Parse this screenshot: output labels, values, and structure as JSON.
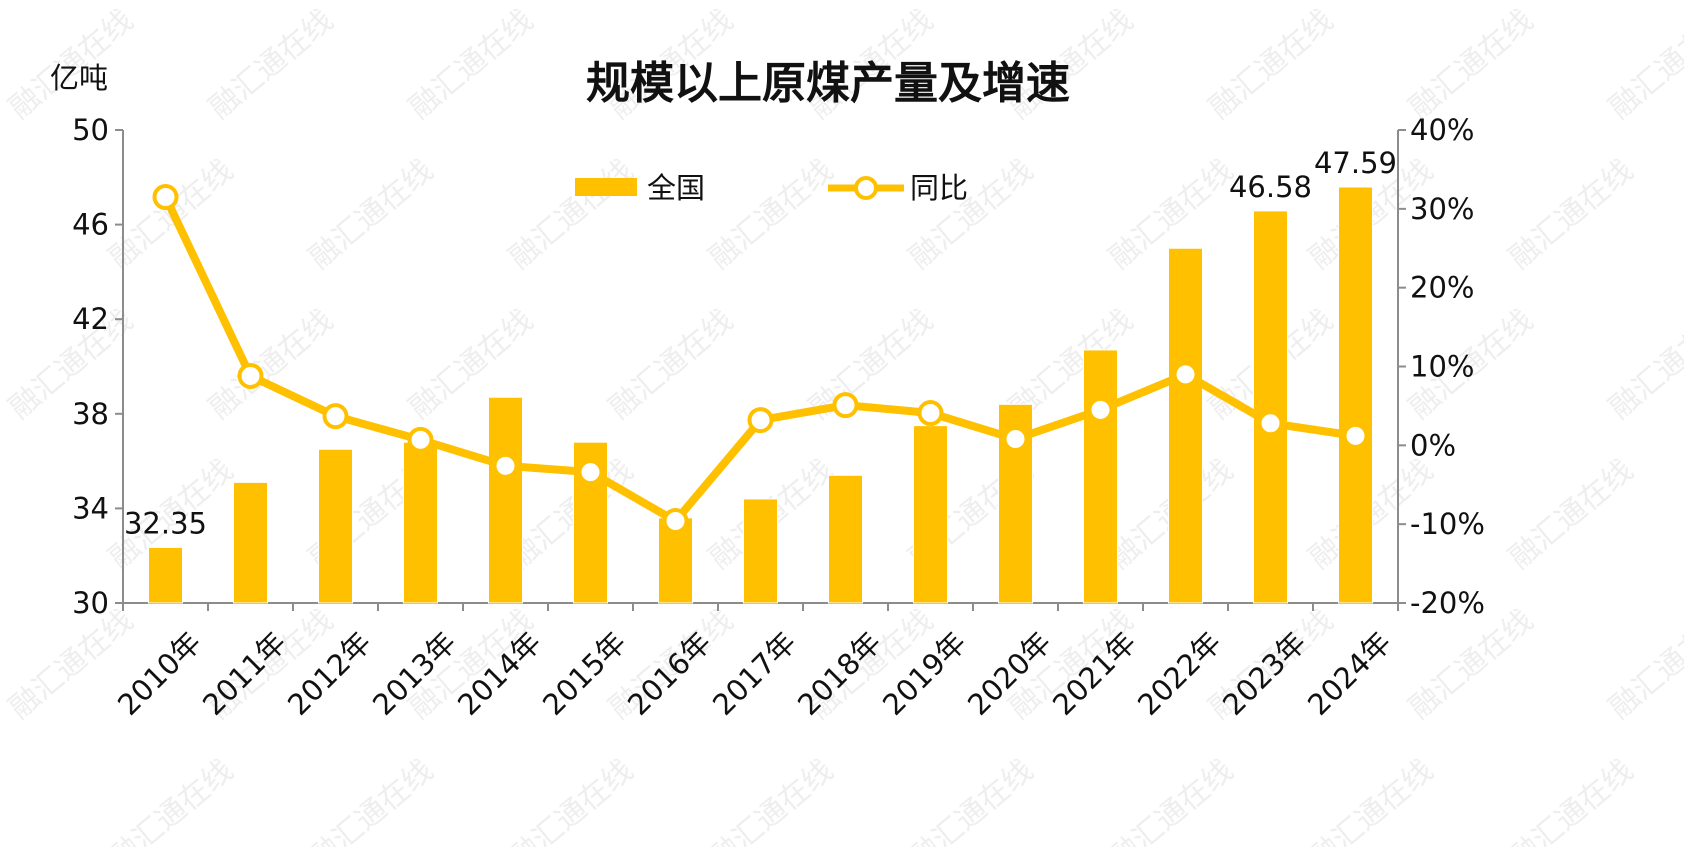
{
  "chart_data": {
    "type": "bar+line",
    "title": "规模以上原煤产量及增速",
    "ylabel_left": "亿吨",
    "categories": [
      "2010年",
      "2011年",
      "2012年",
      "2013年",
      "2014年",
      "2015年",
      "2016年",
      "2017年",
      "2018年",
      "2019年",
      "2020年",
      "2021年",
      "2022年",
      "2023年",
      "2024年"
    ],
    "series": [
      {
        "name": "全国",
        "type": "bar",
        "axis": "left",
        "color": "#FFC000",
        "values": [
          32.35,
          35.1,
          36.5,
          36.8,
          38.7,
          36.8,
          33.6,
          34.4,
          35.4,
          37.5,
          38.4,
          40.7,
          45.0,
          46.58,
          47.59
        ]
      },
      {
        "name": "同比",
        "type": "line",
        "axis": "right",
        "color": "#FFC000",
        "values": [
          31.5,
          8.8,
          3.7,
          0.7,
          -2.6,
          -3.4,
          -9.6,
          3.2,
          5.1,
          4.1,
          0.8,
          4.5,
          9.0,
          2.8,
          1.2
        ]
      }
    ],
    "y_left": {
      "min": 30,
      "max": 50,
      "ticks": [
        "30",
        "34",
        "38",
        "42",
        "46",
        "50"
      ],
      "tick_values": [
        30,
        34,
        38,
        42,
        46,
        50
      ]
    },
    "y_right": {
      "min": -20,
      "max": 40,
      "ticks": [
        "-20%",
        "-10%",
        "0%",
        "10%",
        "20%",
        "30%",
        "40%"
      ],
      "tick_values": [
        -20,
        -10,
        0,
        10,
        20,
        30,
        40
      ]
    },
    "data_labels": [
      {
        "index": 0,
        "text": "32.35"
      },
      {
        "index": 13,
        "text": "46.58"
      },
      {
        "index": 14,
        "text": "47.59"
      }
    ],
    "legend_position": "top-center",
    "grid": false
  },
  "watermark": "融汇通在线"
}
